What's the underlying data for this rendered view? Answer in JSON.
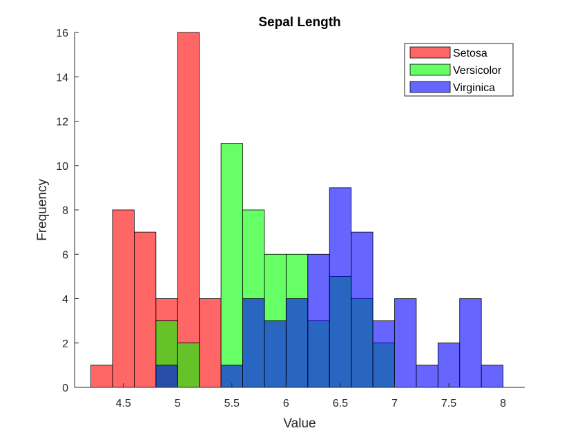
{
  "chart_data": {
    "type": "bar",
    "subtype": "overlapping-histogram",
    "title": "Sepal Length",
    "xlabel": "Value",
    "ylabel": "Frequency",
    "xlim": [
      4.05,
      8.2
    ],
    "ylim": [
      0,
      16
    ],
    "bin_width": 0.2,
    "xticks": [
      4.5,
      5,
      5.5,
      6,
      6.5,
      7,
      7.5,
      8
    ],
    "xtick_labels": [
      "4.5",
      "5",
      "5.5",
      "6",
      "6.5",
      "7",
      "7.5",
      "8"
    ],
    "yticks": [
      0,
      2,
      4,
      6,
      8,
      10,
      12,
      14,
      16
    ],
    "ytick_labels": [
      "0",
      "2",
      "4",
      "6",
      "8",
      "10",
      "12",
      "14",
      "16"
    ],
    "bar_opacity": 0.6,
    "grid": false,
    "legend_position": "top-right",
    "series": [
      {
        "name": "Setosa",
        "color": "#ff0000",
        "bin_edges": [
          4.2,
          4.4,
          4.6,
          4.8,
          5.0,
          5.2,
          5.4
        ],
        "counts": [
          1,
          8,
          7,
          4,
          16,
          4
        ]
      },
      {
        "name": "Versicolor",
        "color": "#00ff00",
        "bin_edges": [
          4.8,
          5.0,
          5.2,
          5.4,
          5.6,
          5.8,
          6.0,
          6.2,
          6.4,
          6.6,
          6.8,
          7.0
        ],
        "counts": [
          3,
          2,
          0,
          11,
          8,
          6,
          6,
          3,
          5,
          4,
          2
        ]
      },
      {
        "name": "Virginica",
        "color": "#0000ff",
        "bin_edges": [
          4.8,
          5.0,
          5.2,
          5.4,
          5.6,
          5.8,
          6.0,
          6.2,
          6.4,
          6.6,
          6.8,
          7.0,
          7.2,
          7.4,
          7.6,
          7.8,
          8.0
        ],
        "counts": [
          1,
          0,
          0,
          1,
          4,
          3,
          4,
          6,
          9,
          7,
          3,
          4,
          1,
          2,
          4,
          1
        ]
      }
    ]
  }
}
